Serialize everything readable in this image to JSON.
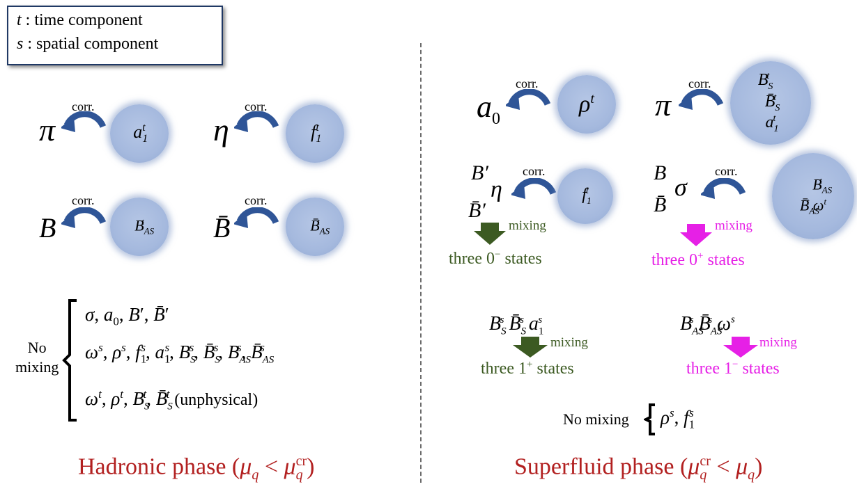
{
  "legend": {
    "time": "t : time component",
    "spatial": "s : spatial component"
  },
  "corr_label": "corr.",
  "hadronic": {
    "pairs": [
      {
        "light": "π",
        "partner": "a₁ᵗ"
      },
      {
        "light": "η",
        "partner": "f₁ᵗ"
      },
      {
        "light": "B",
        "partner": "Bᵗ_AS"
      },
      {
        "light": "B̄",
        "partner": "B̄ᵗ_AS"
      }
    ],
    "no_mixing_label": "No mixing",
    "no_mixing_lines": [
      "σ, a₀, B′, B̄′",
      "ωˢ, ρˢ, f₁ˢ, a₁ˢ, B_Sˢ, B̄_Sˢ, B_ASˢ, B̄_ASˢ",
      "ωᵗ, ρᵗ, B_Sᵗ, B̄_Sᵗ  (unphysical)"
    ],
    "phase_title": "Hadronic phase (μ_q < μ_q^cr)"
  },
  "superfluid": {
    "a0_pair": {
      "light": "a₀",
      "partner": "ρᵗ"
    },
    "pi_pair": {
      "light": "π",
      "partner_top": "B_Sᵗ",
      "partner_bottom": "B̄_Sᵗ a₁ᵗ"
    },
    "eta_group": {
      "top": "B′",
      "mid": "η",
      "bottom": "B̄′",
      "partner": "f₁ᵗ"
    },
    "sigma_group": {
      "top": "B",
      "mid": "σ",
      "bottom": "B̄",
      "partner_top": "B_ASᵗ",
      "partner_bottom": "B̄_ASᵗ ωᵗ"
    },
    "mixing_label": "mixing",
    "three_0minus": "three 0⁻ states",
    "three_0plus": "three 0⁺ states",
    "vec1_fields": "B_Sˢ B̄_Sˢ a₁ˢ",
    "vec2_fields": "B_ASˢ B̄_ASˢ ωˢ",
    "three_1plus": "three 1⁺ states",
    "three_1minus": "three 1⁻ states",
    "no_mixing_label": "No mixing",
    "no_mixing_fields": "ρˢ, f₁ˢ",
    "phase_title": "Superfluid phase (μ_q^cr < μ_q)"
  },
  "colors": {
    "arrow_blue": "#2f5597",
    "blob_blue": "#a5b9de",
    "green": "#3c5a22",
    "pink": "#e620e6",
    "phase_red": "#b22020"
  }
}
